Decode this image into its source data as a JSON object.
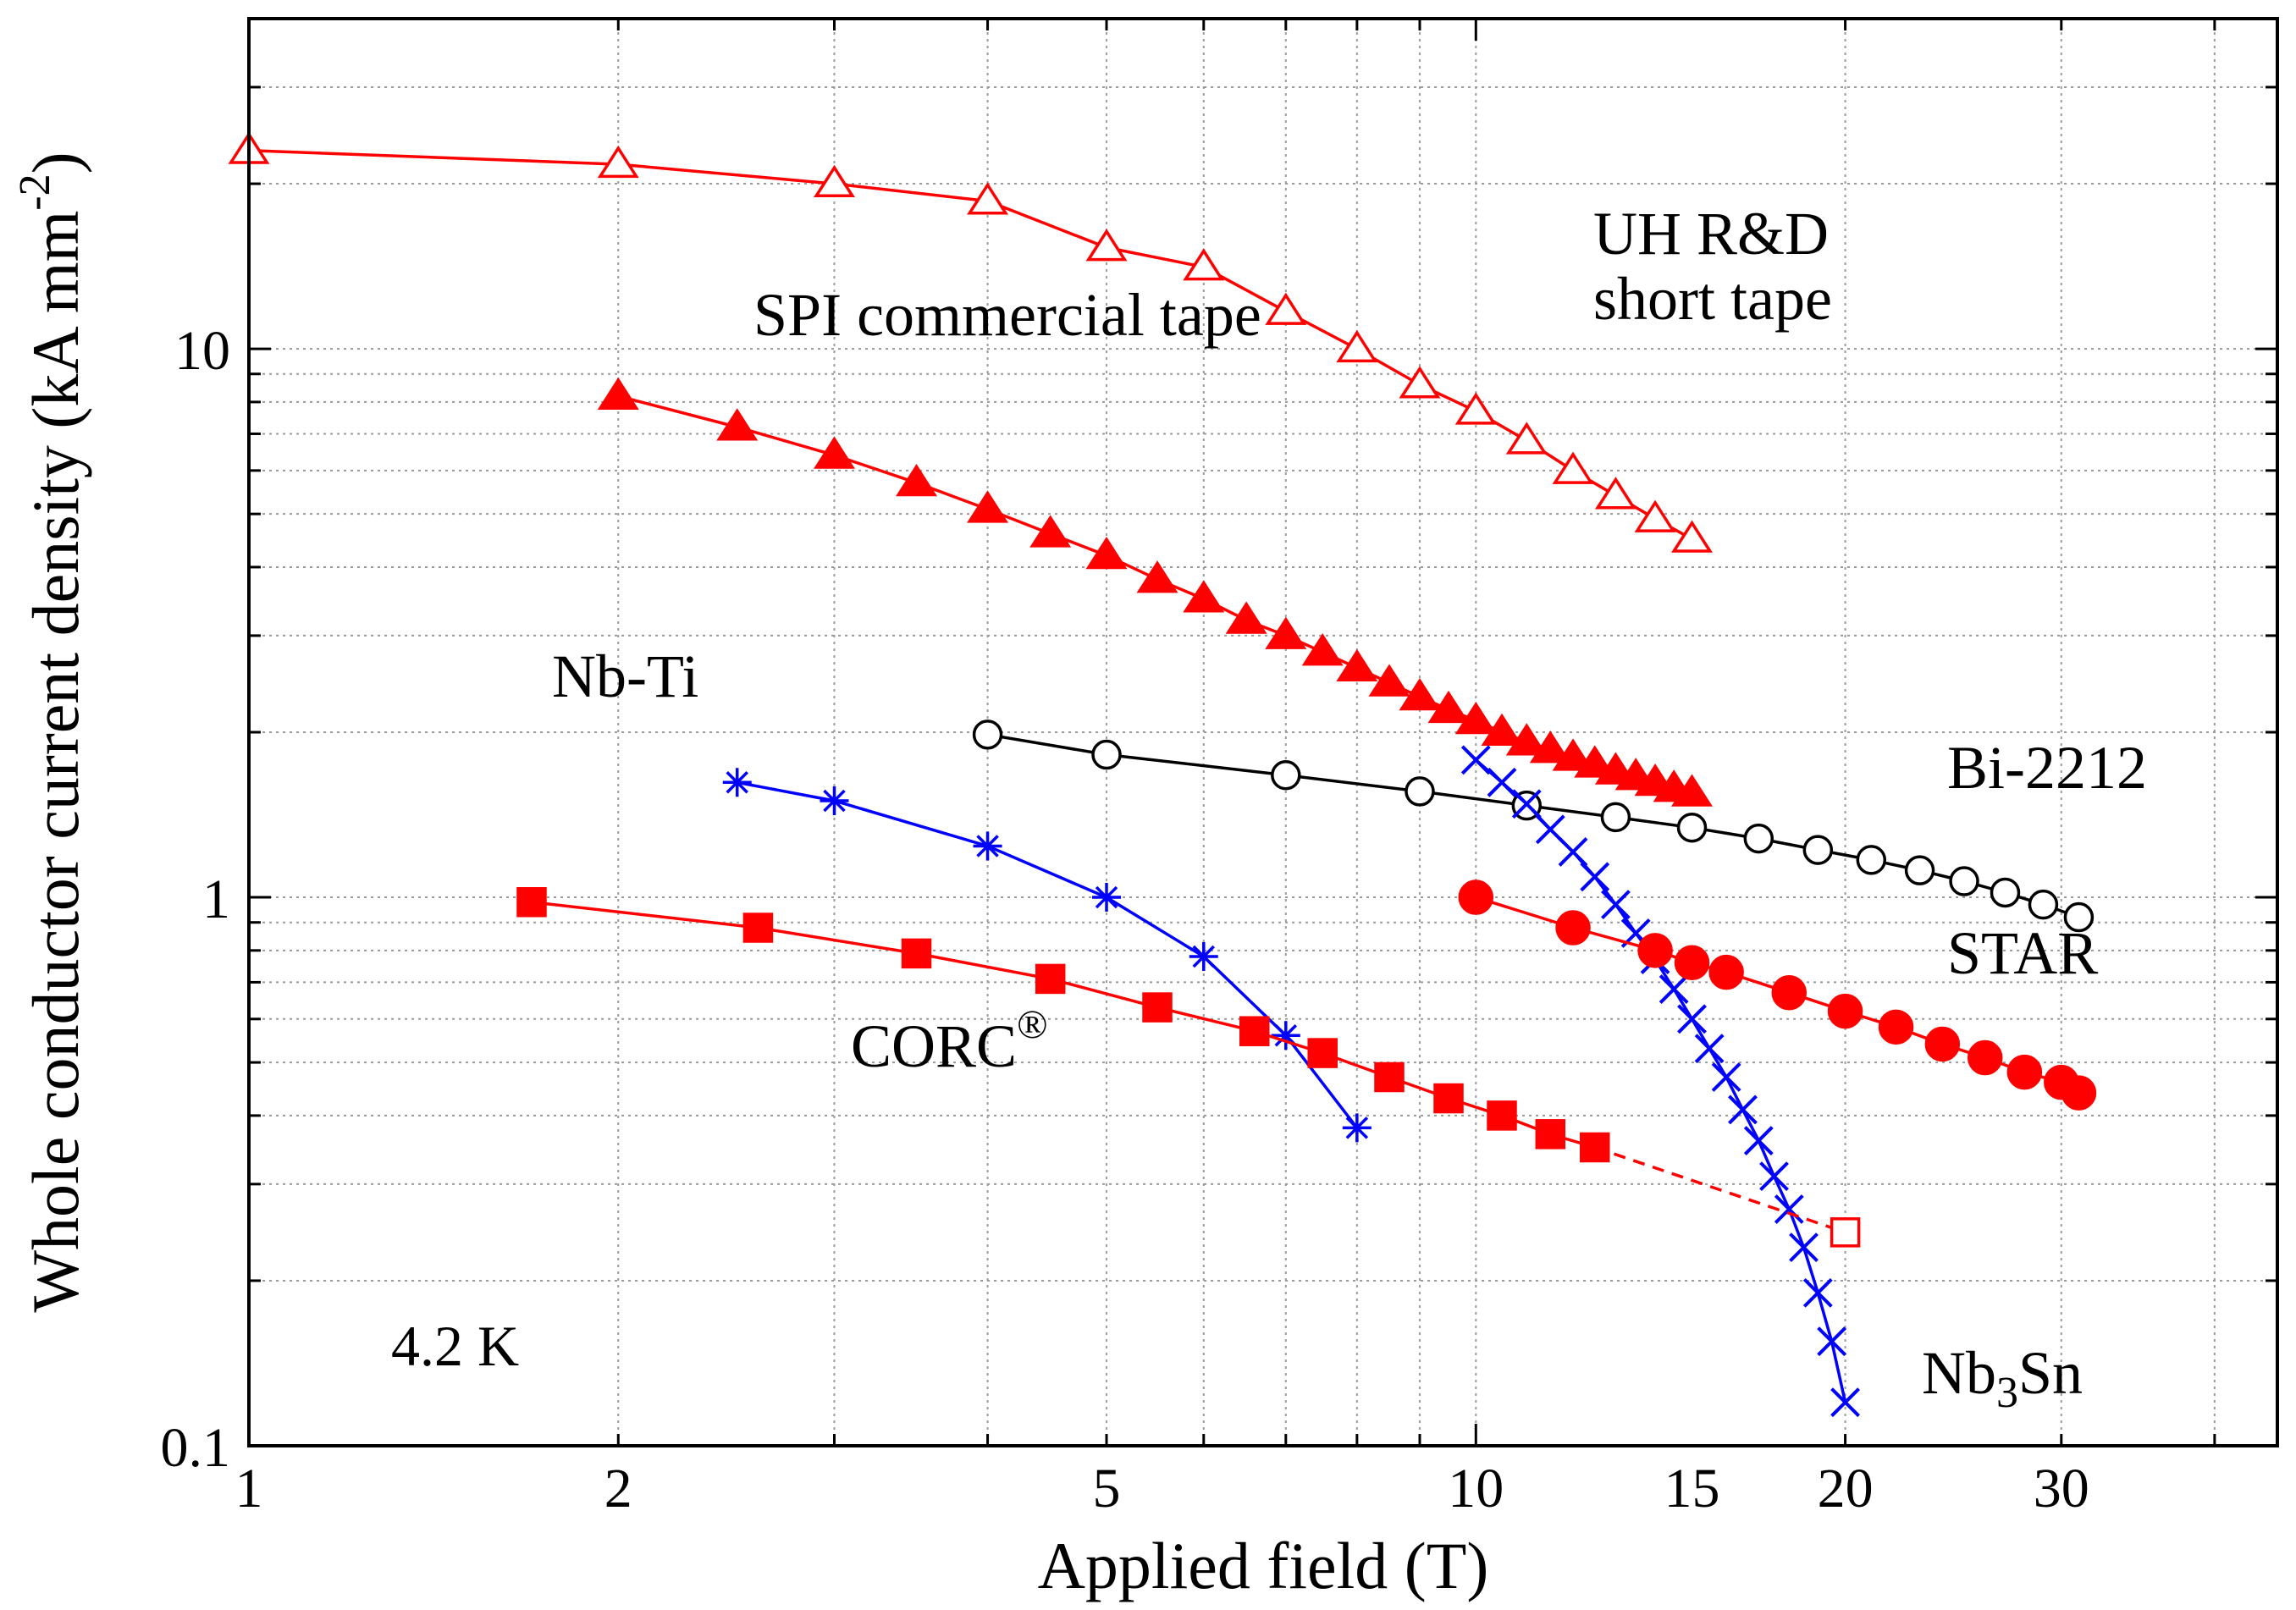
{
  "chart_data": {
    "type": "line",
    "title": "",
    "xlabel": "Applied field (T)",
    "ylabel": "Whole conductor current density (kA mm",
    "ylabel_sup": "-2",
    "ylabel_tail": ")",
    "xscale": "log",
    "yscale": "log",
    "xlim": [
      1,
      45
    ],
    "ylim": [
      0.1,
      40
    ],
    "grid": true,
    "x_ticks": [
      {
        "value": 1,
        "label": "1"
      },
      {
        "value": 2,
        "label": "2"
      },
      {
        "value": 5,
        "label": "5"
      },
      {
        "value": 10,
        "label": "10"
      },
      {
        "value": 15,
        "label": "15"
      },
      {
        "value": 20,
        "label": "20"
      },
      {
        "value": 30,
        "label": "30"
      }
    ],
    "y_ticks": [
      {
        "value": 0.1,
        "label": "0.1"
      },
      {
        "value": 1,
        "label": "1"
      },
      {
        "value": 10,
        "label": "10"
      }
    ],
    "annotations": {
      "temperature": "4.2 K",
      "uh_line1": "UH R&D",
      "uh_line2": "short tape",
      "spi": "SPI commercial tape",
      "nbti": "Nb-Ti",
      "bi2212": "Bi-2212",
      "star": "STAR",
      "corc": "CORC",
      "corc_sup": "®",
      "nb3sn_a": "Nb",
      "nb3sn_sub": "3",
      "nb3sn_b": "Sn"
    },
    "series": [
      {
        "color": "#ff0000",
        "marker": "triangle-open",
        "x": [
          1,
          2,
          3,
          4,
          5,
          6,
          7,
          8,
          9,
          10,
          11,
          12,
          13,
          14,
          15
        ],
        "y": [
          23.0,
          21.7,
          20.0,
          18.6,
          15.3,
          14.1,
          11.7,
          10.0,
          8.6,
          7.7,
          6.8,
          6.0,
          5.4,
          4.9,
          4.5
        ]
      },
      {
        "color": "#ff0000",
        "marker": "triangle-filled",
        "x": [
          2,
          2.5,
          3,
          3.5,
          4,
          4.5,
          5,
          5.5,
          6,
          6.5,
          7,
          7.5,
          8,
          8.5,
          9,
          9.5,
          10,
          10.5,
          11,
          11.5,
          12,
          12.5,
          13,
          13.5,
          14,
          14.5,
          15
        ],
        "y": [
          8.2,
          7.2,
          6.4,
          5.7,
          5.1,
          4.6,
          4.2,
          3.8,
          3.5,
          3.2,
          3.0,
          2.8,
          2.62,
          2.46,
          2.32,
          2.2,
          2.1,
          2.0,
          1.92,
          1.86,
          1.8,
          1.75,
          1.7,
          1.66,
          1.62,
          1.58,
          1.55
        ]
      },
      {
        "color": "#000000",
        "marker": "circle-open",
        "x": [
          4,
          5,
          7,
          9,
          11,
          13,
          15,
          17,
          19,
          21,
          23,
          25,
          27,
          29,
          31
        ],
        "y": [
          1.98,
          1.82,
          1.67,
          1.56,
          1.47,
          1.4,
          1.34,
          1.28,
          1.22,
          1.17,
          1.12,
          1.07,
          1.02,
          0.97,
          0.92
        ]
      },
      {
        "color": "#0000ff",
        "marker": "asterisk",
        "x": [
          2.5,
          3,
          4,
          5,
          6,
          7,
          8
        ],
        "y": [
          1.62,
          1.5,
          1.24,
          1.0,
          0.78,
          0.56,
          0.38
        ]
      },
      {
        "color": "#0000ff",
        "marker": "x",
        "x": [
          10,
          10.5,
          11,
          11.5,
          12,
          12.5,
          13,
          13.5,
          14,
          14.5,
          15,
          15.5,
          16,
          16.5,
          17,
          17.5,
          18,
          18.5,
          19,
          19.5,
          20
        ],
        "y": [
          1.78,
          1.62,
          1.48,
          1.33,
          1.21,
          1.09,
          0.97,
          0.86,
          0.77,
          0.68,
          0.6,
          0.53,
          0.47,
          0.41,
          0.36,
          0.31,
          0.27,
          0.23,
          0.19,
          0.155,
          0.12
        ]
      },
      {
        "color": "#ff0000",
        "marker": "circle-filled",
        "x": [
          10,
          12,
          14,
          15,
          16,
          18,
          20,
          22,
          24,
          26,
          28,
          30,
          31
        ],
        "y": [
          1.0,
          0.88,
          0.8,
          0.76,
          0.73,
          0.67,
          0.62,
          0.58,
          0.54,
          0.51,
          0.48,
          0.46,
          0.44
        ]
      },
      {
        "color": "#ff0000",
        "marker": "square-filled",
        "x": [
          1.7,
          2.6,
          3.5,
          4.5,
          5.5,
          6.6,
          7.5,
          8.5,
          9.5,
          10.5,
          11.5,
          12.5
        ],
        "y": [
          0.98,
          0.88,
          0.79,
          0.71,
          0.63,
          0.57,
          0.52,
          0.47,
          0.43,
          0.4,
          0.37,
          0.35
        ]
      },
      {
        "color": "#ff0000",
        "marker": "square-open",
        "dashed": true,
        "x": [
          12.5,
          20
        ],
        "y": [
          0.35,
          0.245
        ]
      }
    ]
  }
}
